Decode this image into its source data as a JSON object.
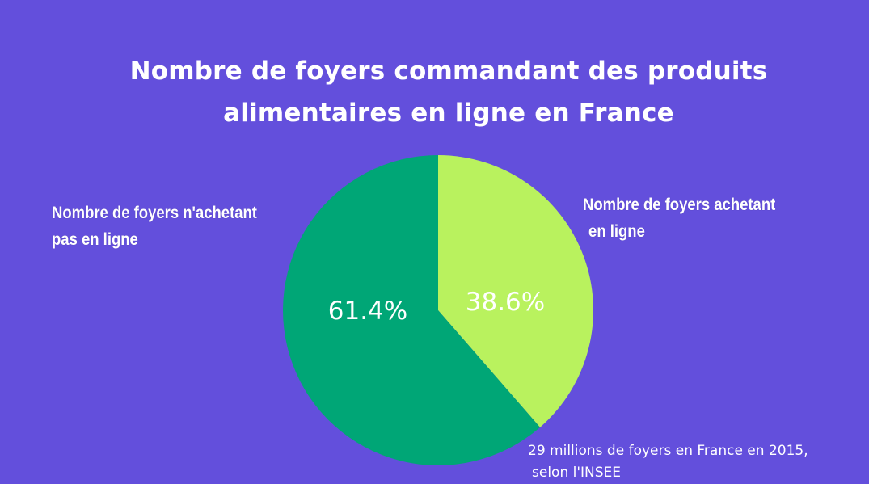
{
  "chart_data": {
    "type": "pie",
    "title": "Nombre de foyers commandant des produits alimentaires en ligne en France",
    "title_lines": [
      "Nombre de foyers commandant des produits",
      "alimentaires en ligne en France"
    ],
    "slices": [
      {
        "name": "Nombre de foyers achetant en ligne",
        "label_lines": [
          "Nombre de foyers achetant",
          "en ligne"
        ],
        "value": 38.6,
        "value_label": "38.6%",
        "color": "#b9f25e"
      },
      {
        "name": "Nombre de foyers n'achetant pas en ligne",
        "label_lines": [
          "Nombre de foyers n'achetant",
          "pas en ligne"
        ],
        "value": 61.4,
        "value_label": "61.4%",
        "color": "#00a676"
      }
    ],
    "annotation_lines": [
      "29 millions de foyers en France en 2015,",
      "selon l'INSEE"
    ]
  },
  "colors": {
    "background": "#634fdc",
    "text": "#ffffff"
  }
}
